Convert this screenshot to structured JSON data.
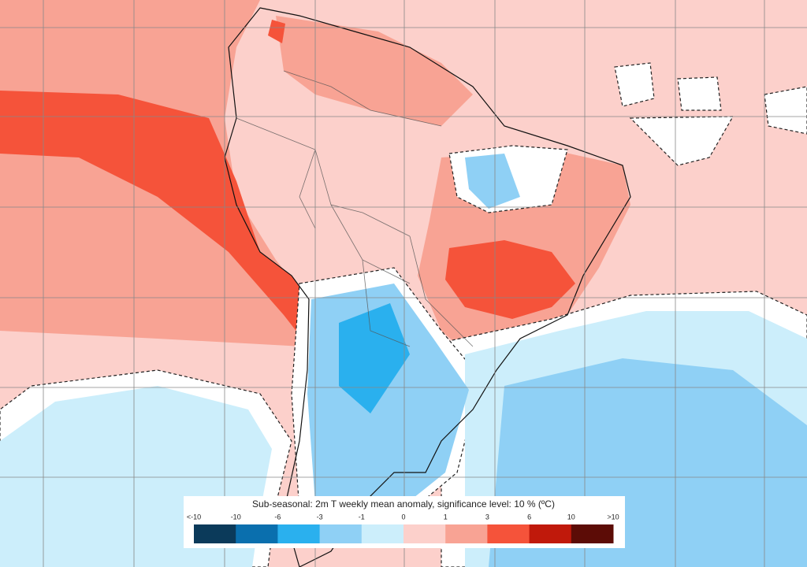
{
  "legend": {
    "title": "Sub-seasonal: 2m T weekly mean anomaly, significance level: 10 % (ºC)",
    "labels": [
      "<-10",
      "-10",
      "-6",
      "-3",
      "-1",
      "0",
      "1",
      "3",
      "6",
      "10",
      ">10"
    ],
    "colors": [
      "#0b3a5a",
      "#0a6fae",
      "#2ab0ee",
      "#8fd0f5",
      "#cceefb",
      "#fcd0cb",
      "#f8a394",
      "#f5533a",
      "#c0190b",
      "#5c0c06"
    ]
  }
}
